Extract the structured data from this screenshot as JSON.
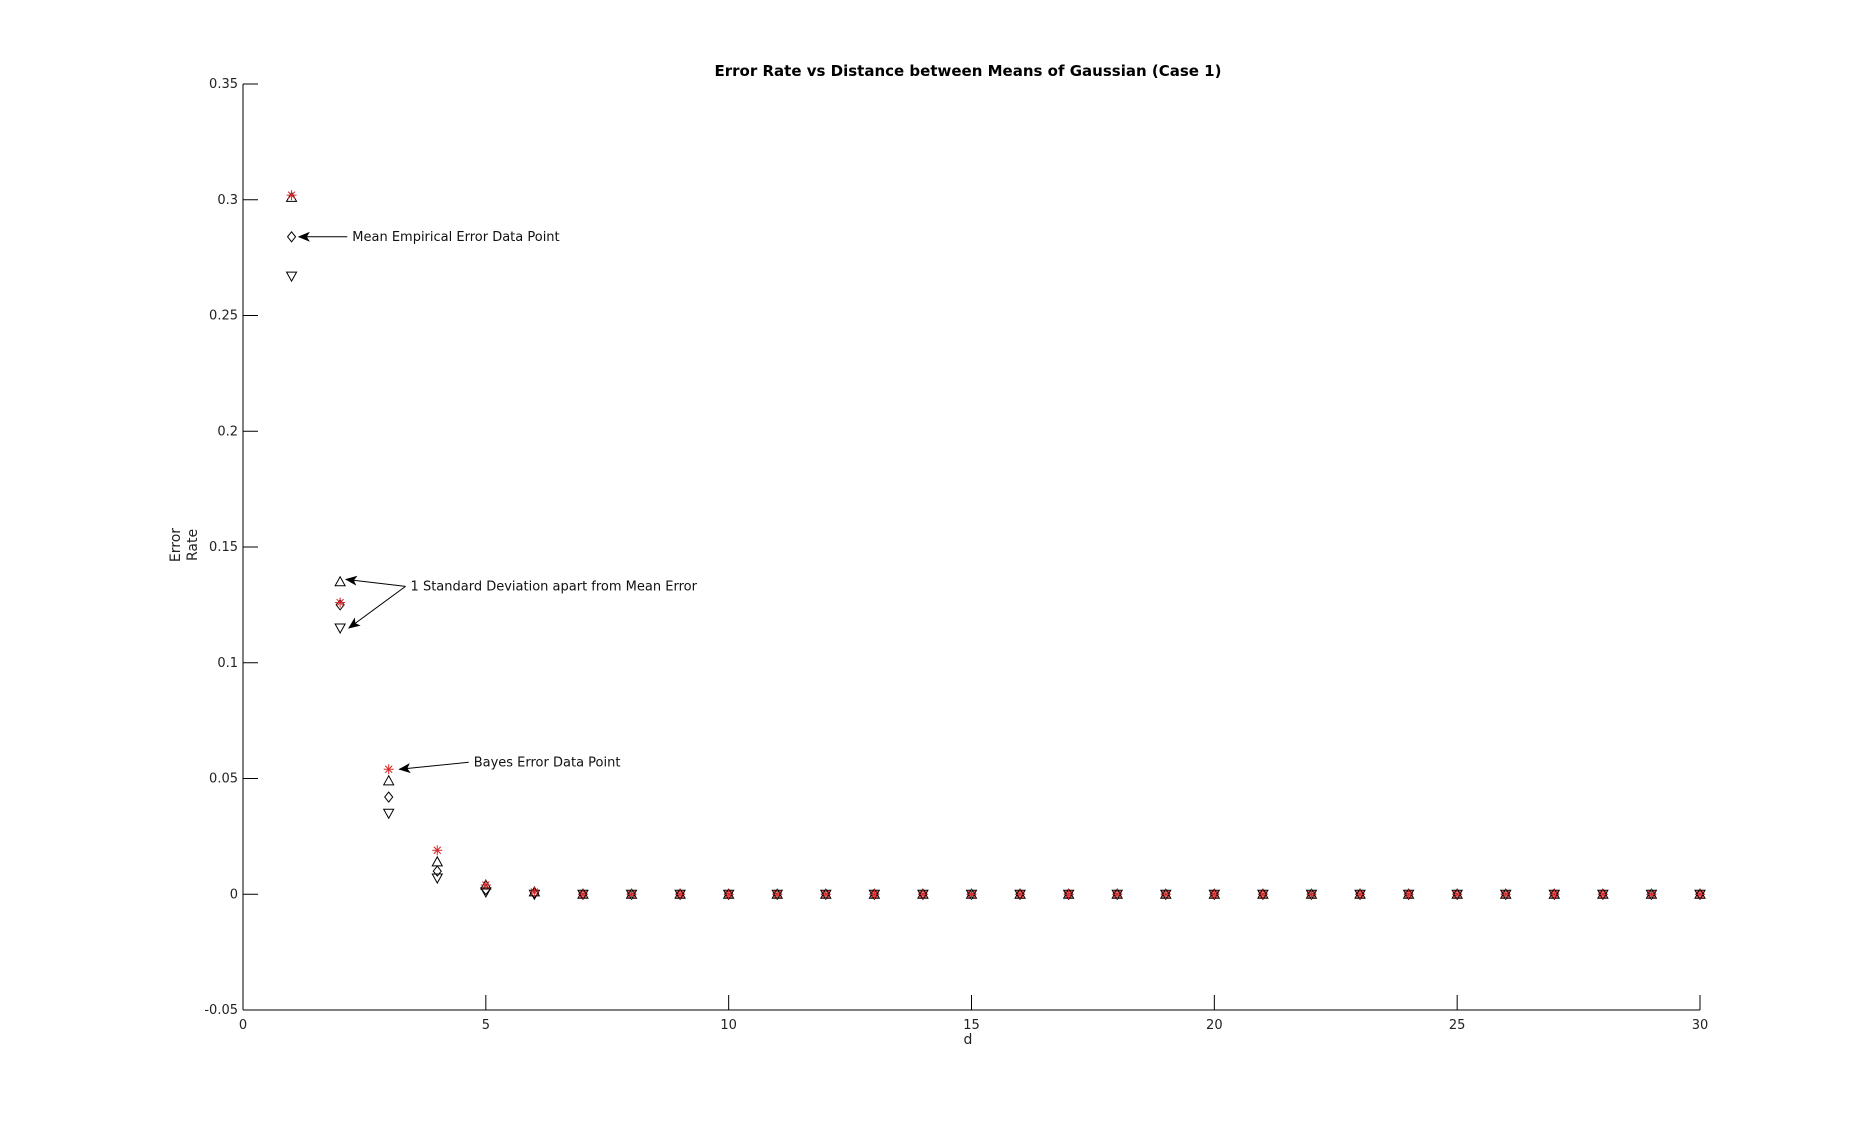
{
  "chart_data": {
    "type": "scatter",
    "title": "Error Rate vs Distance between Means of Gaussian (Case 1)",
    "xlabel": "d",
    "ylabel": [
      "Error",
      "Rate"
    ],
    "xlim": [
      0,
      30
    ],
    "ylim": [
      -0.05,
      0.35
    ],
    "xticks": [
      0,
      5,
      10,
      15,
      20,
      25,
      30
    ],
    "yticks": [
      -0.05,
      0,
      0.05,
      0.1,
      0.15,
      0.2,
      0.25,
      0.3,
      0.35
    ],
    "grid": false,
    "legend": "none",
    "x": [
      1,
      2,
      3,
      4,
      5,
      6,
      7,
      8,
      9,
      10,
      11,
      12,
      13,
      14,
      15,
      16,
      17,
      18,
      19,
      20,
      21,
      22,
      23,
      24,
      25,
      26,
      27,
      28,
      29,
      30
    ],
    "series": [
      {
        "marker": "star",
        "color": "#d62728",
        "values": [
          0.302,
          0.126,
          0.054,
          0.019,
          0.004,
          0.001,
          0,
          0,
          0,
          0,
          0,
          0,
          0,
          0,
          0,
          0,
          0,
          0,
          0,
          0,
          0,
          0,
          0,
          0,
          0,
          0,
          0,
          0,
          0,
          0
        ]
      },
      {
        "marker": "triangle-up",
        "color": "#000000",
        "values": [
          0.301,
          0.135,
          0.049,
          0.014,
          0.004,
          0.001,
          0,
          0,
          0,
          0,
          0,
          0,
          0,
          0,
          0,
          0,
          0,
          0,
          0,
          0,
          0,
          0,
          0,
          0,
          0,
          0,
          0,
          0,
          0,
          0
        ]
      },
      {
        "marker": "diamond",
        "color": "#000000",
        "values": [
          0.284,
          0.125,
          0.042,
          0.01,
          0.002,
          0.0005,
          0,
          0,
          0,
          0,
          0,
          0,
          0,
          0,
          0,
          0,
          0,
          0,
          0,
          0,
          0,
          0,
          0,
          0,
          0,
          0,
          0,
          0,
          0,
          0
        ]
      },
      {
        "marker": "triangle-down",
        "color": "#000000",
        "values": [
          0.267,
          0.115,
          0.035,
          0.007,
          0.001,
          0,
          0,
          0,
          0,
          0,
          0,
          0,
          0,
          0,
          0,
          0,
          0,
          0,
          0,
          0,
          0,
          0,
          0,
          0,
          0,
          0,
          0,
          0,
          0,
          0
        ]
      }
    ],
    "annotations": [
      {
        "text": "Mean Empirical Error Data Point",
        "text_at": [
          2.25,
          0.284
        ],
        "arrows_to": [
          [
            1.15,
            0.284
          ]
        ]
      },
      {
        "text": "1 Standard Deviation apart from Mean Error",
        "text_at": [
          3.45,
          0.133
        ],
        "arrows_to": [
          [
            2.12,
            0.136
          ],
          [
            2.18,
            0.115
          ]
        ]
      },
      {
        "text": "Bayes Error Data Point",
        "text_at": [
          4.75,
          0.057
        ],
        "arrows_to": [
          [
            3.22,
            0.054
          ]
        ]
      }
    ]
  }
}
